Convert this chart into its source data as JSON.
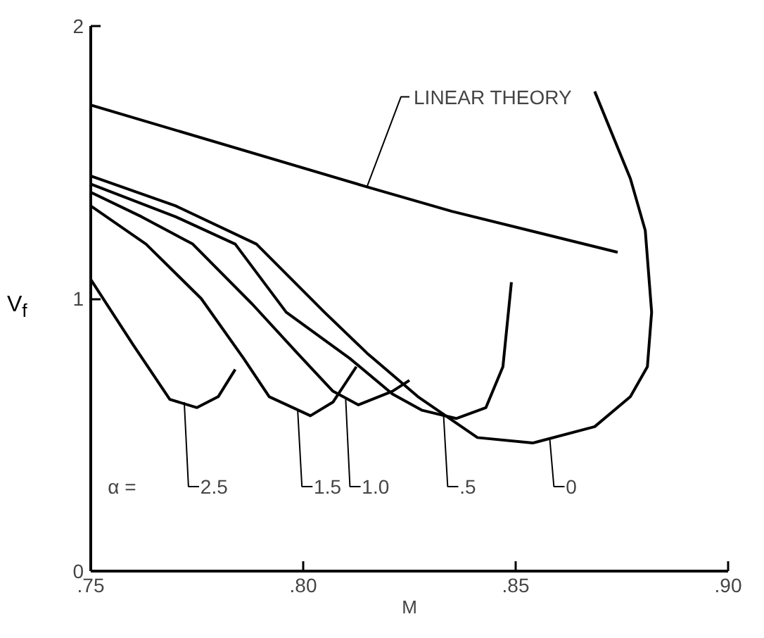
{
  "chart_data": {
    "type": "line",
    "xlabel": "M",
    "ylabel": "V$_{f}$",
    "xlim": [
      0.75,
      0.9
    ],
    "ylim": [
      0,
      2
    ],
    "xticks": [
      {
        "value": 0.75,
        "label": ".75"
      },
      {
        "value": 0.8,
        "label": ".80"
      },
      {
        "value": 0.85,
        "label": ".85"
      },
      {
        "value": 0.9,
        "label": ".90"
      }
    ],
    "yticks": [
      0,
      1,
      2
    ],
    "grid": false,
    "marker": "none",
    "line_style": "solid",
    "color": "#000000",
    "annotations": [
      "α ="
    ],
    "series": [
      {
        "name": "LINEAR THEORY",
        "x": [
          0.75,
          0.815,
          0.835,
          0.874
        ],
        "values": [
          1.71,
          1.41,
          1.32,
          1.17
        ]
      },
      {
        "name": "0",
        "x": [
          0.75,
          0.77,
          0.789,
          0.805,
          0.815,
          0.827,
          0.841,
          0.854,
          0.8686,
          0.877,
          0.881,
          0.882,
          0.8805,
          0.877,
          0.8686
        ],
        "values": [
          1.45,
          1.34,
          1.2,
          0.95,
          0.8,
          0.64,
          0.49,
          0.47,
          0.53,
          0.64,
          0.75,
          0.95,
          1.25,
          1.44,
          1.76
        ]
      },
      {
        "name": ".5",
        "x": [
          0.75,
          0.77,
          0.784,
          0.796,
          0.811,
          0.821,
          0.828,
          0.836,
          0.843,
          0.847,
          0.849
        ],
        "values": [
          1.42,
          1.3,
          1.2,
          0.95,
          0.78,
          0.65,
          0.59,
          0.56,
          0.6,
          0.75,
          1.06
        ]
      },
      {
        "name": "1.0",
        "x": [
          0.75,
          0.762,
          0.774,
          0.788,
          0.7986,
          0.807,
          0.813,
          0.821,
          0.825
        ],
        "values": [
          1.39,
          1.3,
          1.2,
          0.98,
          0.8,
          0.66,
          0.61,
          0.66,
          0.7
        ]
      },
      {
        "name": "1.5",
        "x": [
          0.75,
          0.763,
          0.776,
          0.786,
          0.792,
          0.8017,
          0.807,
          0.8125
        ],
        "values": [
          1.34,
          1.2,
          1.0,
          0.78,
          0.64,
          0.57,
          0.62,
          0.75
        ]
      },
      {
        "name": "2.5",
        "x": [
          0.75,
          0.755,
          0.76,
          0.7686,
          0.775,
          0.78,
          0.784
        ],
        "values": [
          1.07,
          0.95,
          0.83,
          0.63,
          0.6,
          0.64,
          0.74
        ]
      }
    ]
  }
}
